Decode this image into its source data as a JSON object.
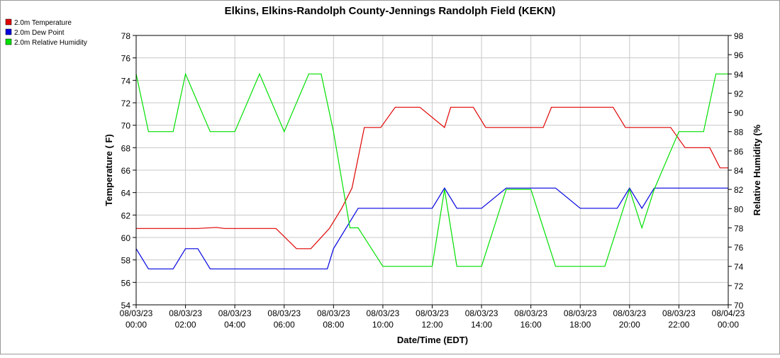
{
  "chart_data": {
    "type": "line",
    "title": "Elkins, Elkins-Randolph County-Jennings Randolph Field (KEKN)",
    "xlabel": "Date/Time (EDT)",
    "ylabel": "Temperature ( F)",
    "y2label": "Relative Humidity (%",
    "xlim": [
      "2023-08-03 00:00",
      "2023-08-04 00:00"
    ],
    "ylim": [
      54,
      78
    ],
    "y2lim": [
      70,
      98
    ],
    "grid": true,
    "legend_position": "top-left",
    "x_ticks": [
      {
        "date": "08/03/23",
        "time": "00:00"
      },
      {
        "date": "08/03/23",
        "time": "02:00"
      },
      {
        "date": "08/03/23",
        "time": "04:00"
      },
      {
        "date": "08/03/23",
        "time": "06:00"
      },
      {
        "date": "08/03/23",
        "time": "08:00"
      },
      {
        "date": "08/03/23",
        "time": "10:00"
      },
      {
        "date": "08/03/23",
        "time": "12:00"
      },
      {
        "date": "08/03/23",
        "time": "14:00"
      },
      {
        "date": "08/03/23",
        "time": "16:00"
      },
      {
        "date": "08/03/23",
        "time": "18:00"
      },
      {
        "date": "08/03/23",
        "time": "20:00"
      },
      {
        "date": "08/03/23",
        "time": "22:00"
      },
      {
        "date": "08/04/23",
        "time": "00:00"
      }
    ],
    "y_ticks": [
      "54",
      "56",
      "58",
      "60",
      "62",
      "64",
      "66",
      "68",
      "70",
      "72",
      "74",
      "76",
      "78"
    ],
    "y2_ticks": [
      "70",
      "72",
      "74",
      "76",
      "78",
      "80",
      "82",
      "84",
      "86",
      "88",
      "90",
      "92",
      "94",
      "96",
      "98"
    ],
    "series": [
      {
        "name": "2.0m Temperature",
        "axis": "left",
        "color": "#e00000",
        "x": [
          "2023-08-03 00:00",
          "2023-08-03 00:50",
          "2023-08-03 01:50",
          "2023-08-03 02:30",
          "2023-08-03 03:15",
          "2023-08-03 03:35",
          "2023-08-03 04:30",
          "2023-08-03 05:10",
          "2023-08-03 05:40",
          "2023-08-03 06:30",
          "2023-08-03 07:05",
          "2023-08-03 07:50",
          "2023-08-03 08:20",
          "2023-08-03 08:45",
          "2023-08-03 08:55",
          "2023-08-03 09:15",
          "2023-08-03 09:55",
          "2023-08-03 10:30",
          "2023-08-03 11:00",
          "2023-08-03 11:30",
          "2023-08-03 12:30",
          "2023-08-03 12:45",
          "2023-08-03 13:40",
          "2023-08-03 14:10",
          "2023-08-03 15:00",
          "2023-08-03 15:30",
          "2023-08-03 16:30",
          "2023-08-03 16:50",
          "2023-08-03 17:30",
          "2023-08-03 18:30",
          "2023-08-03 19:20",
          "2023-08-03 19:50",
          "2023-08-03 20:30",
          "2023-08-03 21:15",
          "2023-08-03 21:40",
          "2023-08-03 22:15",
          "2023-08-03 22:40",
          "2023-08-03 23:15",
          "2023-08-03 23:40",
          "2023-08-04 00:00"
        ],
        "values": [
          60.8,
          60.8,
          60.8,
          60.8,
          60.9,
          60.8,
          60.8,
          60.8,
          60.8,
          59.0,
          59.0,
          60.8,
          62.6,
          64.4,
          66.2,
          69.8,
          69.8,
          71.6,
          71.6,
          71.6,
          69.8,
          71.6,
          71.6,
          69.8,
          69.8,
          69.8,
          69.8,
          71.6,
          71.6,
          71.6,
          71.6,
          69.8,
          69.8,
          69.8,
          69.8,
          68.0,
          68.0,
          68.0,
          66.2,
          66.2
        ]
      },
      {
        "name": "2.0m Dew Point",
        "axis": "left",
        "color": "#0000e0",
        "x": [
          "2023-08-03 00:00",
          "2023-08-03 00:30",
          "2023-08-03 01:30",
          "2023-08-03 02:00",
          "2023-08-03 02:30",
          "2023-08-03 03:00",
          "2023-08-03 04:00",
          "2023-08-03 05:00",
          "2023-08-03 06:00",
          "2023-08-03 07:00",
          "2023-08-03 07:45",
          "2023-08-03 08:00",
          "2023-08-03 08:30",
          "2023-08-03 09:00",
          "2023-08-03 10:00",
          "2023-08-03 11:00",
          "2023-08-03 12:00",
          "2023-08-03 12:30",
          "2023-08-03 13:00",
          "2023-08-03 14:00",
          "2023-08-03 15:00",
          "2023-08-03 16:00",
          "2023-08-03 17:00",
          "2023-08-03 18:00",
          "2023-08-03 19:00",
          "2023-08-03 19:30",
          "2023-08-03 20:00",
          "2023-08-03 20:30",
          "2023-08-03 21:00",
          "2023-08-03 22:00",
          "2023-08-03 23:00",
          "2023-08-04 00:00"
        ],
        "values": [
          59.0,
          57.2,
          57.2,
          59.0,
          59.0,
          57.2,
          57.2,
          57.2,
          57.2,
          57.2,
          57.2,
          59.0,
          60.8,
          62.6,
          62.6,
          62.6,
          62.6,
          64.4,
          62.6,
          62.6,
          64.4,
          64.4,
          64.4,
          62.6,
          62.6,
          62.6,
          64.4,
          62.6,
          64.4,
          64.4,
          64.4,
          64.4
        ]
      },
      {
        "name": "2.0m Relative Humidity",
        "axis": "right",
        "color": "#00e000",
        "x": [
          "2023-08-03 00:00",
          "2023-08-03 00:30",
          "2023-08-03 01:30",
          "2023-08-03 02:00",
          "2023-08-03 03:00",
          "2023-08-03 04:00",
          "2023-08-03 05:00",
          "2023-08-03 06:00",
          "2023-08-03 07:00",
          "2023-08-03 07:30",
          "2023-08-03 08:00",
          "2023-08-03 08:40",
          "2023-08-03 09:00",
          "2023-08-03 10:00",
          "2023-08-03 11:00",
          "2023-08-03 12:00",
          "2023-08-03 12:30",
          "2023-08-03 13:00",
          "2023-08-03 14:00",
          "2023-08-03 15:00",
          "2023-08-03 16:00",
          "2023-08-03 17:00",
          "2023-08-03 18:00",
          "2023-08-03 19:00",
          "2023-08-03 19:30",
          "2023-08-03 20:00",
          "2023-08-03 20:30",
          "2023-08-03 21:00",
          "2023-08-03 22:00",
          "2023-08-03 23:00",
          "2023-08-03 23:30",
          "2023-08-04 00:00"
        ],
        "values": [
          94,
          88,
          88,
          94,
          88,
          88,
          94,
          88,
          94,
          94,
          88,
          78,
          78,
          74,
          74,
          74,
          82,
          74,
          74,
          82,
          82,
          74,
          74,
          74,
          78,
          82,
          78,
          82,
          88,
          88,
          94,
          94
        ]
      }
    ]
  }
}
